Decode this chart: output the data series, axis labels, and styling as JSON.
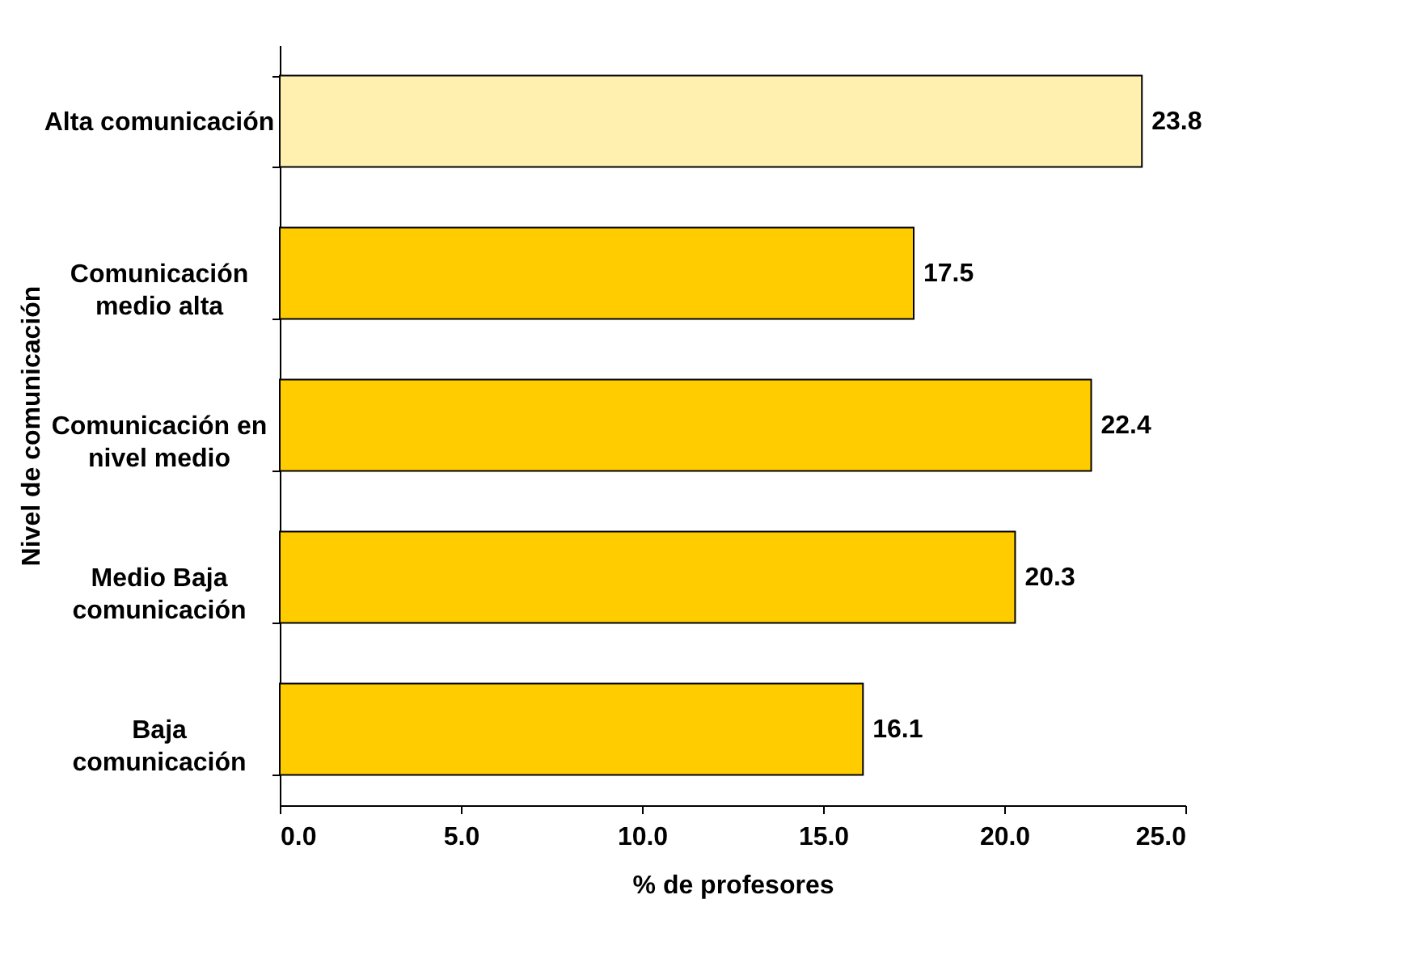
{
  "chart_data": {
    "type": "bar",
    "orientation": "horizontal",
    "xlabel": "% de profesores",
    "ylabel": "Nivel de comunicación",
    "categories": [
      "Alta comunicación",
      "Comunicación\nmedio alta",
      "Comunicación en\nnivel medio",
      "Medio Baja\ncomunicación",
      "Baja\ncomunicación"
    ],
    "values": [
      23.8,
      17.5,
      22.4,
      20.3,
      16.1
    ],
    "colors": [
      "#fff0b0",
      "#ffcc00",
      "#ffcc00",
      "#ffcc00",
      "#ffcc00"
    ],
    "xlim": [
      0,
      25
    ],
    "xticks": [
      {
        "value": 0,
        "label": "0.0"
      },
      {
        "value": 5,
        "label": "5.0"
      },
      {
        "value": 10,
        "label": "10.0"
      },
      {
        "value": 15,
        "label": "15.0"
      },
      {
        "value": 20,
        "label": "20.0"
      },
      {
        "value": 25,
        "label": "25.0"
      }
    ],
    "data_labels": true,
    "grid": false
  }
}
